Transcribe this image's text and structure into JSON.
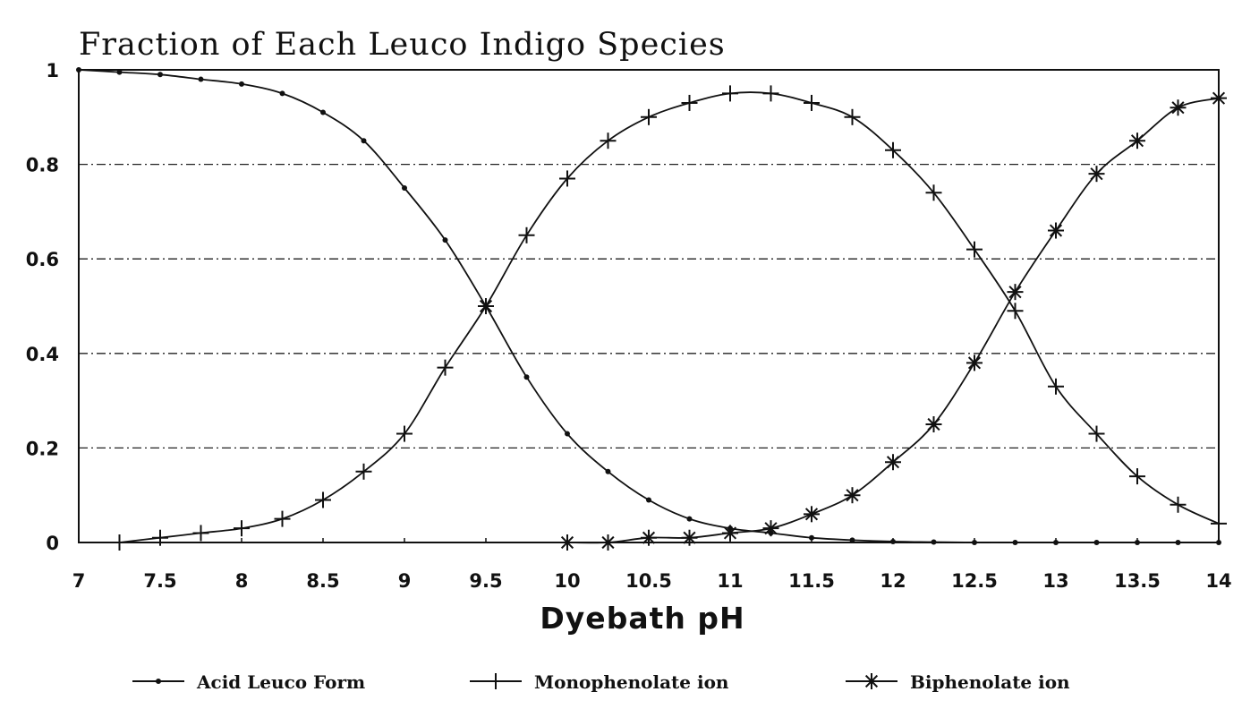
{
  "chart_data": {
    "type": "line",
    "title": "Fraction of Each Leuco Indigo Species",
    "xlabel": "Dyebath pH",
    "ylabel": "",
    "xlim": [
      7,
      14
    ],
    "ylim": [
      0,
      1
    ],
    "x_ticks": [
      "7",
      "7.5",
      "8",
      "8.5",
      "9",
      "9.5",
      "10",
      "10.5",
      "11",
      "11.5",
      "12",
      "12.5",
      "13",
      "13.5",
      "14"
    ],
    "y_ticks": [
      "0",
      "0.2",
      "0.4",
      "0.6",
      "0.8",
      "1"
    ],
    "grid": "horizontal dash-dot",
    "legend_position": "bottom",
    "series": [
      {
        "name": "Acid Leuco Form",
        "marker": "dot",
        "x": [
          7,
          7.25,
          7.5,
          7.75,
          8,
          8.25,
          8.5,
          8.75,
          9,
          9.25,
          9.5,
          9.75,
          10,
          10.25,
          10.5,
          10.75,
          11,
          11.25,
          11.5,
          11.75,
          12,
          12.25,
          12.5,
          12.75,
          13,
          13.25,
          13.5,
          13.75,
          14
        ],
        "y": [
          1.0,
          0.995,
          0.99,
          0.98,
          0.97,
          0.95,
          0.91,
          0.85,
          0.75,
          0.64,
          0.5,
          0.35,
          0.23,
          0.15,
          0.09,
          0.05,
          0.03,
          0.02,
          0.01,
          0.005,
          0.002,
          0.001,
          0.0,
          0.0,
          0.0,
          0.0,
          0.0,
          0.0,
          0.0
        ]
      },
      {
        "name": "Monophenolate ion",
        "marker": "plus",
        "x": [
          7.25,
          7.5,
          7.75,
          8,
          8.25,
          8.5,
          8.75,
          9,
          9.25,
          9.5,
          9.75,
          10,
          10.25,
          10.5,
          10.75,
          11,
          11.25,
          11.5,
          11.75,
          12,
          12.25,
          12.5,
          12.75,
          13,
          13.25,
          13.5,
          13.75,
          14
        ],
        "y": [
          0.0,
          0.01,
          0.02,
          0.03,
          0.05,
          0.09,
          0.15,
          0.23,
          0.37,
          0.5,
          0.65,
          0.77,
          0.85,
          0.9,
          0.93,
          0.95,
          0.95,
          0.93,
          0.9,
          0.83,
          0.74,
          0.62,
          0.49,
          0.33,
          0.23,
          0.14,
          0.08,
          0.04
        ]
      },
      {
        "name": "Biphenolate ion",
        "marker": "asterisk",
        "x": [
          9.5,
          10,
          10.25,
          10.5,
          10.75,
          11,
          11.25,
          11.5,
          11.75,
          12,
          12.25,
          12.5,
          12.75,
          13,
          13.25,
          13.5,
          13.75,
          14
        ],
        "y": [
          0.5,
          0.0,
          0.0,
          0.01,
          0.01,
          0.02,
          0.03,
          0.06,
          0.1,
          0.17,
          0.25,
          0.38,
          0.53,
          0.66,
          0.78,
          0.85,
          0.92,
          0.94
        ]
      }
    ]
  }
}
